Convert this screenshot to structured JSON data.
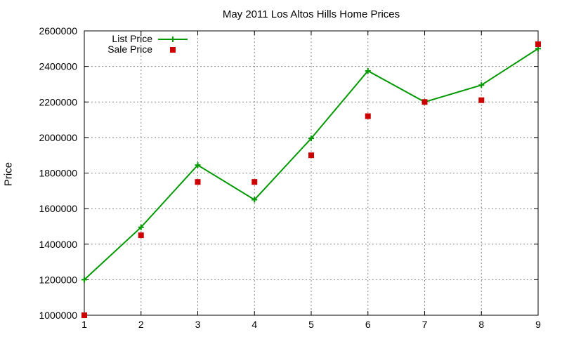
{
  "chart_data": {
    "type": "line",
    "title": "May 2011 Los Altos Hills Home Prices",
    "xlabel": "",
    "ylabel": "Price",
    "x": [
      1,
      2,
      3,
      4,
      5,
      6,
      7,
      8,
      9
    ],
    "xlim": [
      1,
      9
    ],
    "ylim": [
      1000000,
      2600000
    ],
    "x_ticks": [
      "1",
      "2",
      "3",
      "4",
      "5",
      "6",
      "7",
      "8",
      "9"
    ],
    "y_ticks": [
      "1000000",
      "1200000",
      "1400000",
      "1600000",
      "1800000",
      "2000000",
      "2200000",
      "2400000",
      "2600000"
    ],
    "grid": true,
    "legend_position": "top-left",
    "series": [
      {
        "name": "List Price",
        "style": "line+cross",
        "color": "#009900",
        "values": [
          1200000,
          1495000,
          1845000,
          1650000,
          1995000,
          2375000,
          2200000,
          2295000,
          2500000
        ]
      },
      {
        "name": "Sale Price",
        "style": "square-markers",
        "color": "#cc0000",
        "values": [
          1000000,
          1450000,
          1750000,
          1750000,
          1900000,
          2120000,
          2200000,
          2210000,
          2525000
        ]
      }
    ]
  }
}
